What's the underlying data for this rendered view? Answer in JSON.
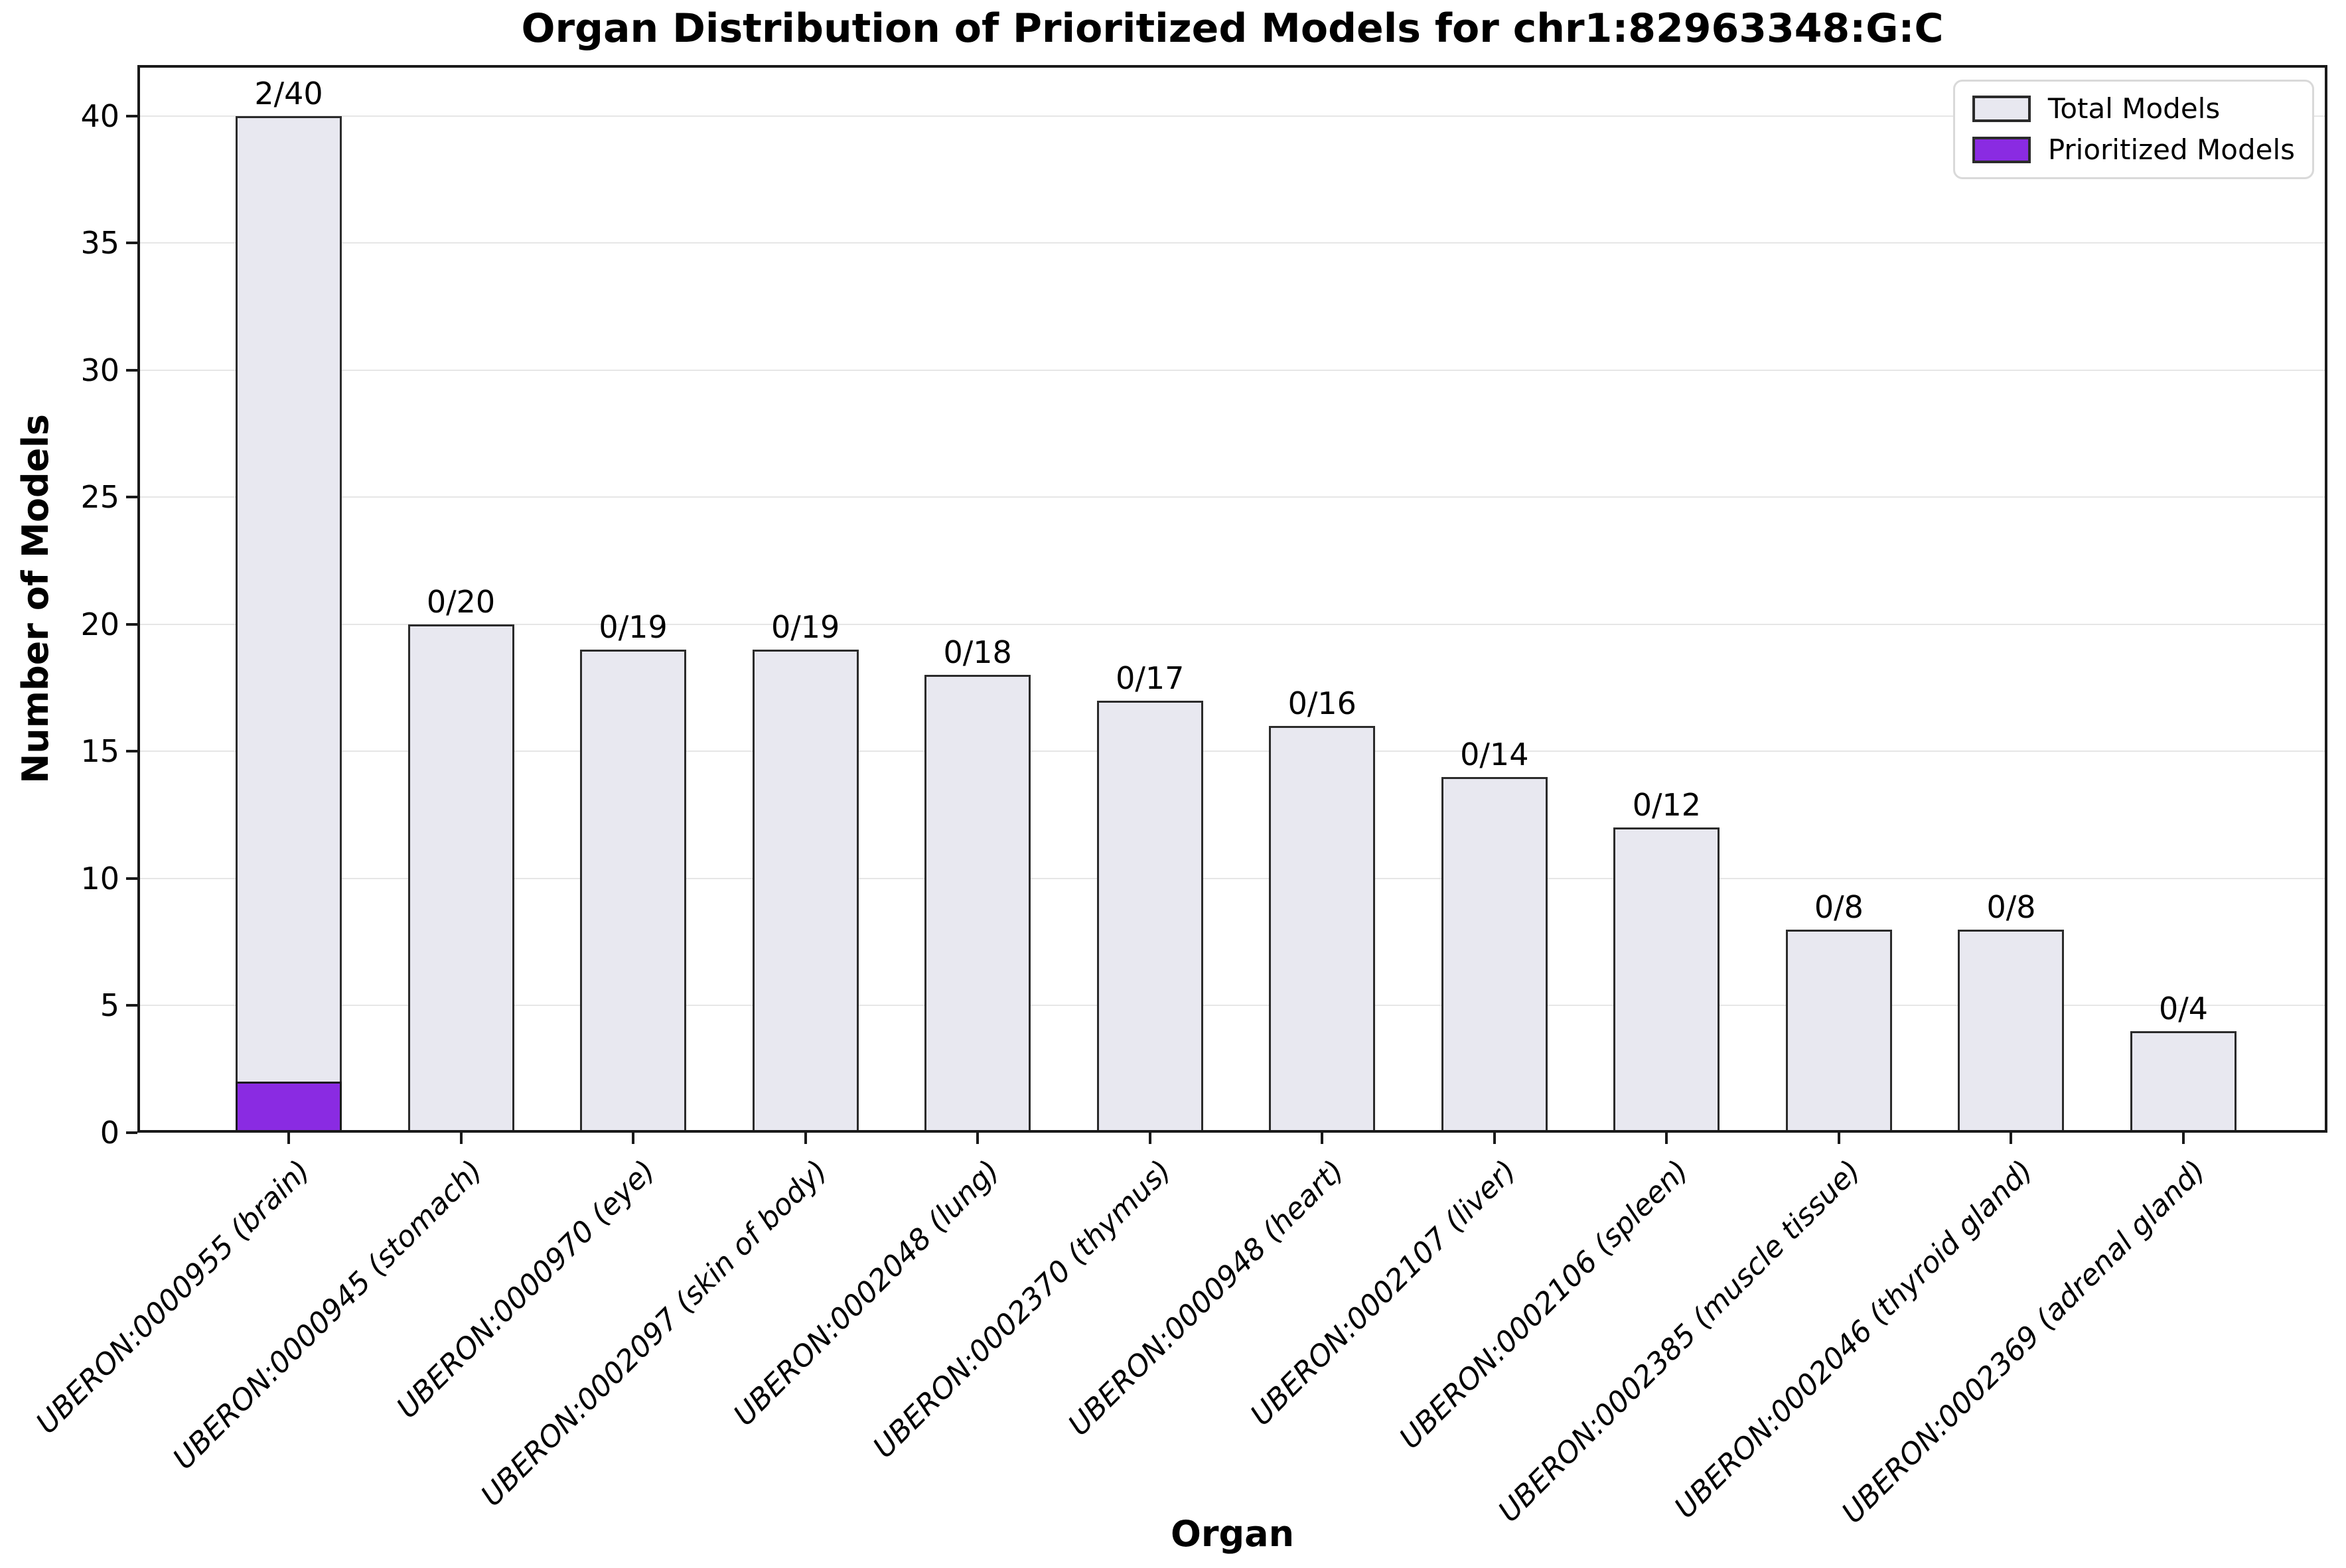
{
  "title": "Organ Distribution of Prioritized Models for chr1:82963348:G:C",
  "axes": {
    "xlabel": "Organ",
    "ylabel": "Number of Models"
  },
  "legend": {
    "position": "upper right",
    "items": [
      {
        "label": "Total Models",
        "color": "#E8E8F0"
      },
      {
        "label": "Prioritized Models",
        "color": "#8A2BE2"
      }
    ]
  },
  "colors": {
    "total_fill": "#E8E8F0",
    "prioritized_fill": "#8A2BE2",
    "bar_edge": "#2B2B2B",
    "grid": "#E6E6E6",
    "spine": "#1A1A1A",
    "legend_border": "#D9D9D9",
    "background": "#FFFFFF"
  },
  "chart_data": {
    "type": "bar",
    "title": "Organ Distribution of Prioritized Models for chr1:82963348:G:C",
    "xlabel": "Organ",
    "ylabel": "Number of Models",
    "categories": [
      "UBERON:0000955 (brain)",
      "UBERON:0000945 (stomach)",
      "UBERON:0000970 (eye)",
      "UBERON:0002097 (skin of body)",
      "UBERON:0002048 (lung)",
      "UBERON:0002370 (thymus)",
      "UBERON:0000948 (heart)",
      "UBERON:0002107 (liver)",
      "UBERON:0002106 (spleen)",
      "UBERON:0002385 (muscle tissue)",
      "UBERON:0002046 (thyroid gland)",
      "UBERON:0002369 (adrenal gland)"
    ],
    "series": [
      {
        "name": "Total Models",
        "values": [
          40,
          20,
          19,
          19,
          18,
          17,
          16,
          14,
          12,
          8,
          8,
          4
        ],
        "color": "#E8E8F0"
      },
      {
        "name": "Prioritized Models",
        "values": [
          2,
          0,
          0,
          0,
          0,
          0,
          0,
          0,
          0,
          0,
          0,
          0
        ],
        "color": "#8A2BE2"
      }
    ],
    "annotations": [
      "2/40",
      "0/20",
      "0/19",
      "0/19",
      "0/18",
      "0/17",
      "0/16",
      "0/14",
      "0/12",
      "0/8",
      "0/8",
      "0/4"
    ],
    "ylim": [
      0,
      42
    ],
    "yticks": [
      0,
      5,
      10,
      15,
      20,
      25,
      30,
      35,
      40
    ],
    "grid": "horizontal",
    "legend_position": "upper right"
  }
}
